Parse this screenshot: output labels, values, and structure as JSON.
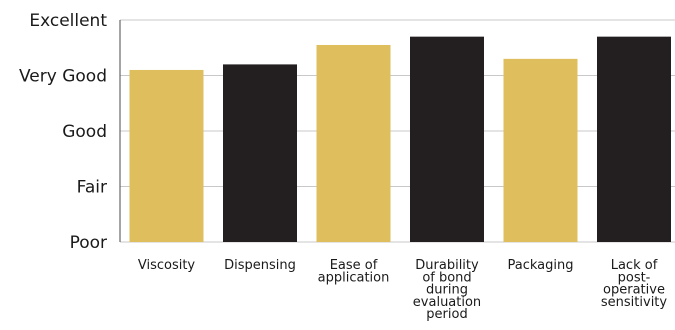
{
  "chart_data": {
    "type": "bar",
    "title": "",
    "xlabel": "",
    "ylabel": "",
    "categories": [
      [
        "Viscosity"
      ],
      [
        "Dispensing"
      ],
      [
        "Ease of",
        "application"
      ],
      [
        "Durability",
        "of bond",
        "during",
        "evaluation",
        "period"
      ],
      [
        "Packaging"
      ],
      [
        "Lack of",
        "post-",
        "operative",
        "sensitivity"
      ]
    ],
    "y_tick_labels": [
      "Poor",
      "Fair",
      "Good",
      "Very Good",
      "Excellent"
    ],
    "ylim": [
      0,
      4
    ],
    "values": [
      3.1,
      3.2,
      3.55,
      3.7,
      3.3,
      3.7
    ],
    "colors": [
      "#dfbe5e",
      "#231f20",
      "#dfbe5e",
      "#231f20",
      "#dfbe5e",
      "#231f20"
    ],
    "grid": true
  }
}
